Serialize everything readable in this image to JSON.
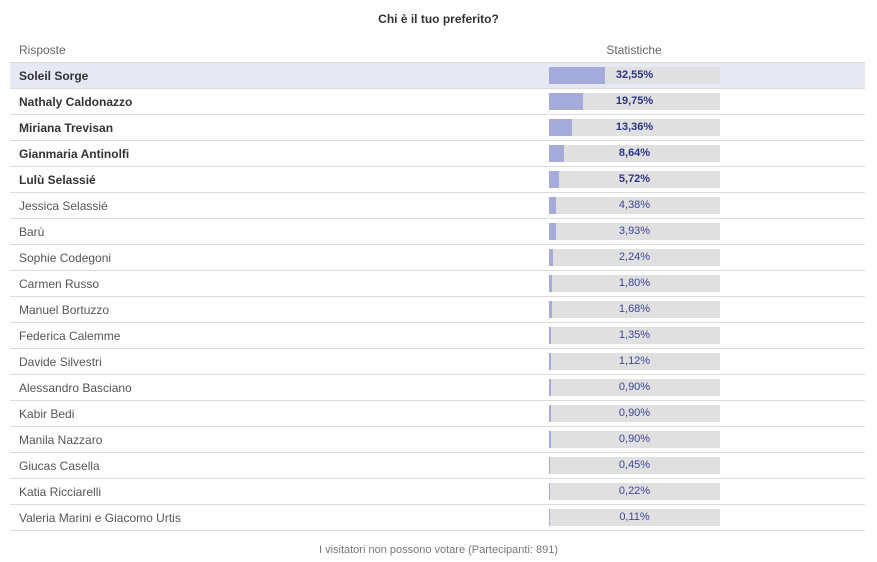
{
  "poll": {
    "title": "Chi è il tuo preferito?",
    "header_answers": "Risposte",
    "header_stats": "Statistiche",
    "footer": "I visitatori non possono votare (Partecipanti: 891)",
    "accent_color": "#a4abdb",
    "track_color": "#e0e0e0",
    "answers": [
      {
        "name": "Soleil Sorge",
        "percent_label": "32,55%",
        "value": 32.55,
        "bold": true,
        "selected": true
      },
      {
        "name": "Nathaly Caldonazzo",
        "percent_label": "19,75%",
        "value": 19.75,
        "bold": true
      },
      {
        "name": "Miriana Trevisan",
        "percent_label": "13,36%",
        "value": 13.36,
        "bold": true
      },
      {
        "name": "Gianmaria Antinolfi",
        "percent_label": "8,64%",
        "value": 8.64,
        "bold": true
      },
      {
        "name": "Lulù Selassié",
        "percent_label": "5,72%",
        "value": 5.72,
        "bold": true
      },
      {
        "name": "Jessica Selassié",
        "percent_label": "4,38%",
        "value": 4.38
      },
      {
        "name": "Barù",
        "percent_label": "3,93%",
        "value": 3.93
      },
      {
        "name": "Sophie Codegoni",
        "percent_label": "2,24%",
        "value": 2.24
      },
      {
        "name": "Carmen Russo",
        "percent_label": "1,80%",
        "value": 1.8
      },
      {
        "name": "Manuel Bortuzzo",
        "percent_label": "1,68%",
        "value": 1.68
      },
      {
        "name": "Federica Calemme",
        "percent_label": "1,35%",
        "value": 1.35
      },
      {
        "name": "Davide Silvestri",
        "percent_label": "1,12%",
        "value": 1.12
      },
      {
        "name": "Alessandro Basciano",
        "percent_label": "0,90%",
        "value": 0.9
      },
      {
        "name": "Kabir Bedi",
        "percent_label": "0,90%",
        "value": 0.9
      },
      {
        "name": "Manila Nazzaro",
        "percent_label": "0,90%",
        "value": 0.9
      },
      {
        "name": "Giucas Casella",
        "percent_label": "0,45%",
        "value": 0.45
      },
      {
        "name": "Katia Ricciarelli",
        "percent_label": "0,22%",
        "value": 0.22
      },
      {
        "name": "Valeria Marini e Giacomo Urtis",
        "percent_label": "0,11%",
        "value": 0.11
      }
    ]
  }
}
